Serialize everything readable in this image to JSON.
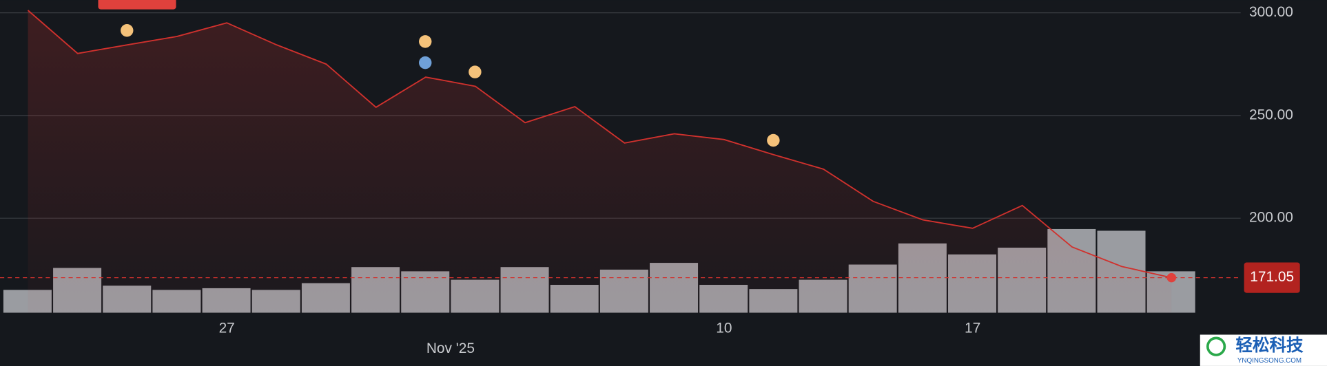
{
  "chart_data": {
    "type": "line",
    "categories": [
      null,
      null,
      null,
      null,
      "27",
      null,
      null,
      null,
      null,
      null,
      null,
      null,
      null,
      null,
      "10",
      null,
      null,
      null,
      null,
      "17",
      null,
      null,
      null,
      null
    ],
    "x_group_label": "Nov '25",
    "series": [
      {
        "color": "#d0312d",
        "values": [
          301.2,
          280.2,
          284.4,
          288.5,
          295.1,
          284.4,
          275.0,
          254.0,
          268.7,
          264.2,
          246.5,
          254.3,
          236.6,
          241.1,
          238.3,
          230.9,
          223.9,
          208.2,
          199.2,
          195.1,
          206.2,
          186.0,
          176.5,
          171.05
        ]
      }
    ],
    "volume": {
      "color": "#9a9ca1",
      "values": [
        27,
        53,
        32,
        27,
        29,
        27,
        35,
        54,
        49,
        39,
        54,
        33,
        51,
        59,
        33,
        28,
        39,
        57,
        82,
        69,
        77,
        99,
        97,
        49
      ],
      "lim": [
        0,
        355
      ]
    },
    "events": [
      {
        "color": "#f5c27a",
        "x": 2,
        "value": 291.4
      },
      {
        "color": "#f5c27a",
        "x": 8,
        "value": 286.0
      },
      {
        "color": "#6fa0d8",
        "x": 8,
        "value": 275.7
      },
      {
        "color": "#f5c27a",
        "x": 9,
        "value": 271.2
      },
      {
        "color": "#f5c27a",
        "x": 15,
        "value": 237.9
      }
    ],
    "last_price": 171.05,
    "ylim": [
      154,
      306.2
    ],
    "yticks": [
      {
        "value": 200,
        "label": "200.00"
      },
      {
        "value": 250,
        "label": "250.00"
      },
      {
        "value": 300,
        "label": "300.00"
      }
    ],
    "grid": true
  },
  "watermark": {
    "title": "轻松科技",
    "url": "YNQINGSONG.COM"
  }
}
